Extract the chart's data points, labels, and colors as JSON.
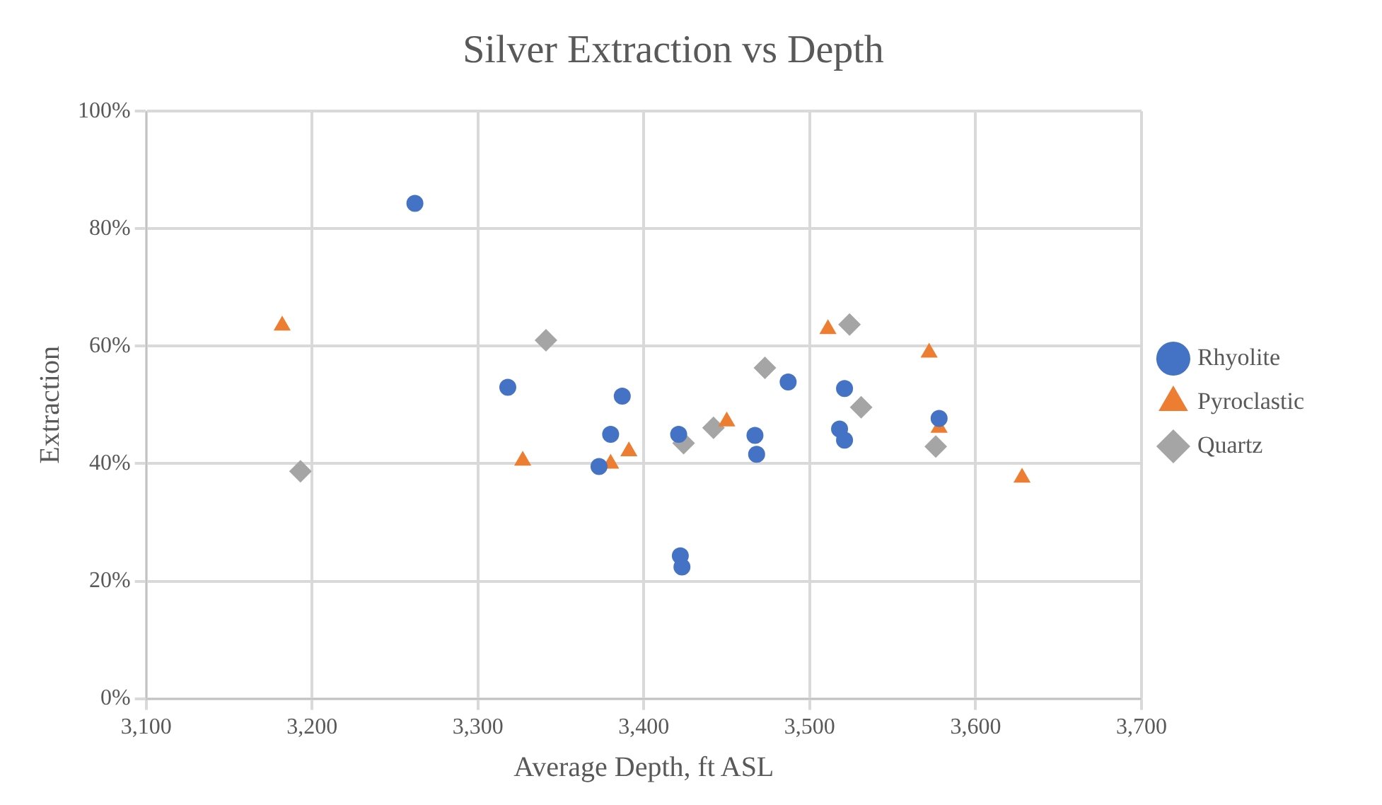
{
  "chart_data": {
    "type": "scatter",
    "title": "Silver Extraction vs Depth",
    "xlabel": "Average Depth, ft ASL",
    "ylabel": "Extraction",
    "xlim": [
      3100,
      3700
    ],
    "xticks": [
      {
        "value": 3100,
        "label": "3,100"
      },
      {
        "value": 3200,
        "label": "3,200"
      },
      {
        "value": 3300,
        "label": "3,300"
      },
      {
        "value": 3400,
        "label": "3,400"
      },
      {
        "value": 3500,
        "label": "3,500"
      },
      {
        "value": 3600,
        "label": "3,600"
      },
      {
        "value": 3700,
        "label": "3,700"
      }
    ],
    "ylim": [
      0,
      100
    ],
    "yticks": [
      {
        "value": 0,
        "label": "0%"
      },
      {
        "value": 20,
        "label": "20%"
      },
      {
        "value": 40,
        "label": "40%"
      },
      {
        "value": 60,
        "label": "60%"
      },
      {
        "value": 80,
        "label": "80%"
      },
      {
        "value": 100,
        "label": "100%"
      }
    ],
    "grid": true,
    "legend": "right",
    "series": [
      {
        "name": "Rhyolite",
        "color": "#4472c4",
        "marker": "circle",
        "x": [
          3262,
          3318,
          3387,
          3380,
          3373,
          3421,
          3422,
          3423,
          3467,
          3468,
          3487,
          3521,
          3518,
          3521,
          3578
        ],
        "values": [
          84.3,
          53,
          51.5,
          45,
          39.5,
          45,
          24.3,
          22.4,
          44.8,
          41.6,
          53.9,
          52.8,
          45.9,
          44,
          47.7
        ]
      },
      {
        "name": "Pyroclastic",
        "color": "#ed7d31",
        "marker": "triangle",
        "x": [
          3182,
          3327,
          3380,
          3391,
          3450,
          3511,
          3572,
          3578,
          3628
        ],
        "values": [
          63.5,
          40.5,
          40,
          42.1,
          47.2,
          62.9,
          58.9,
          46.1,
          37.6
        ]
      },
      {
        "name": "Quartz",
        "color": "#a5a5a5",
        "marker": "diamond",
        "x": [
          3193,
          3341,
          3424,
          3442,
          3473,
          3524,
          3531,
          3576
        ],
        "values": [
          38.7,
          61,
          43.5,
          46.1,
          56.3,
          63.7,
          49.6,
          42.9
        ]
      }
    ]
  }
}
